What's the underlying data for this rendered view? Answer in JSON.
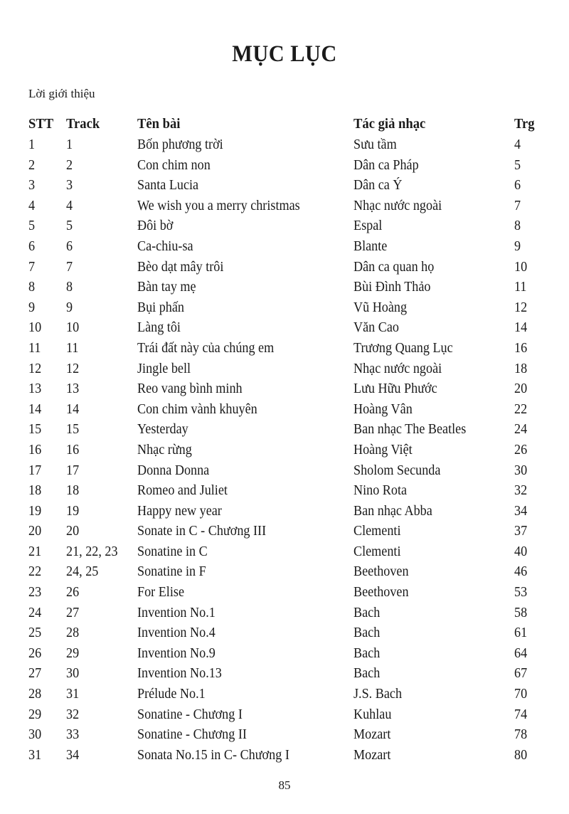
{
  "title": "MỤC LỤC",
  "intro": "Lời giới thiệu",
  "headers": {
    "stt": "STT",
    "track": "Track",
    "song": "Tên bài",
    "composer": "Tác giả nhạc",
    "page": "Trg"
  },
  "rows": [
    [
      "1",
      "1",
      "Bốn phương trời",
      "Sưu tầm",
      "4"
    ],
    [
      "2",
      "2",
      "Con chim non",
      "Dân ca Pháp",
      "5"
    ],
    [
      "3",
      "3",
      "Santa Lucia",
      "Dân ca Ý",
      "6"
    ],
    [
      "4",
      "4",
      "We wish you a merry christmas",
      "Nhạc nước ngoài",
      "7"
    ],
    [
      "5",
      "5",
      "Đôi bờ",
      "Espal",
      "8"
    ],
    [
      "6",
      "6",
      "Ca-chiu-sa",
      "Blante",
      "9"
    ],
    [
      "7",
      "7",
      "Bèo dạt mây trôi",
      "Dân ca quan họ",
      "10"
    ],
    [
      "8",
      "8",
      "Bàn tay mẹ",
      "Bùi Đình Thảo",
      "11"
    ],
    [
      "9",
      "9",
      "Bụi phấn",
      "Vũ Hoàng",
      "12"
    ],
    [
      "10",
      "10",
      "Làng tôi",
      "Văn Cao",
      "14"
    ],
    [
      "11",
      "11",
      "Trái đất này của chúng em",
      "Trương Quang Lục",
      "16"
    ],
    [
      "12",
      "12",
      "Jingle bell",
      "Nhạc nước ngoài",
      "18"
    ],
    [
      "13",
      "13",
      "Reo vang bình minh",
      "Lưu Hữu Phước",
      "20"
    ],
    [
      "14",
      "14",
      "Con chim vành khuyên",
      "Hoàng Vân",
      "22"
    ],
    [
      "15",
      "15",
      "Yesterday",
      "Ban nhạc The Beatles",
      "24"
    ],
    [
      "16",
      "16",
      "Nhạc rừng",
      "Hoàng Việt",
      "26"
    ],
    [
      "17",
      "17",
      "Donna Donna",
      "Sholom Secunda",
      "30"
    ],
    [
      "18",
      "18",
      "Romeo and Juliet",
      "Nino Rota",
      "32"
    ],
    [
      "19",
      "19",
      "Happy new year",
      "Ban nhạc Abba",
      "34"
    ],
    [
      "20",
      "20",
      "Sonate in C - Chương III",
      "Clementi",
      "37"
    ],
    [
      "21",
      "21, 22, 23",
      "Sonatine in C",
      "Clementi",
      "40"
    ],
    [
      "22",
      "24, 25",
      "Sonatine in F",
      "Beethoven",
      "46"
    ],
    [
      "23",
      "26",
      "For Elise",
      "Beethoven",
      "53"
    ],
    [
      "24",
      "27",
      "Invention No.1",
      "Bach",
      "58"
    ],
    [
      "25",
      "28",
      "Invention No.4",
      "Bach",
      "61"
    ],
    [
      "26",
      "29",
      "Invention No.9",
      "Bach",
      "64"
    ],
    [
      "27",
      "30",
      "Invention No.13",
      "Bach",
      "67"
    ],
    [
      "28",
      "31",
      "Prélude No.1",
      "J.S. Bach",
      "70"
    ],
    [
      "29",
      "32",
      "Sonatine - Chương I",
      "Kuhlau",
      "74"
    ],
    [
      "30",
      "33",
      "Sonatine - Chương II",
      "Mozart",
      "78"
    ],
    [
      "31",
      "34",
      "Sonata No.15 in C- Chương I",
      "Mozart",
      "80"
    ]
  ],
  "page_number": "85"
}
